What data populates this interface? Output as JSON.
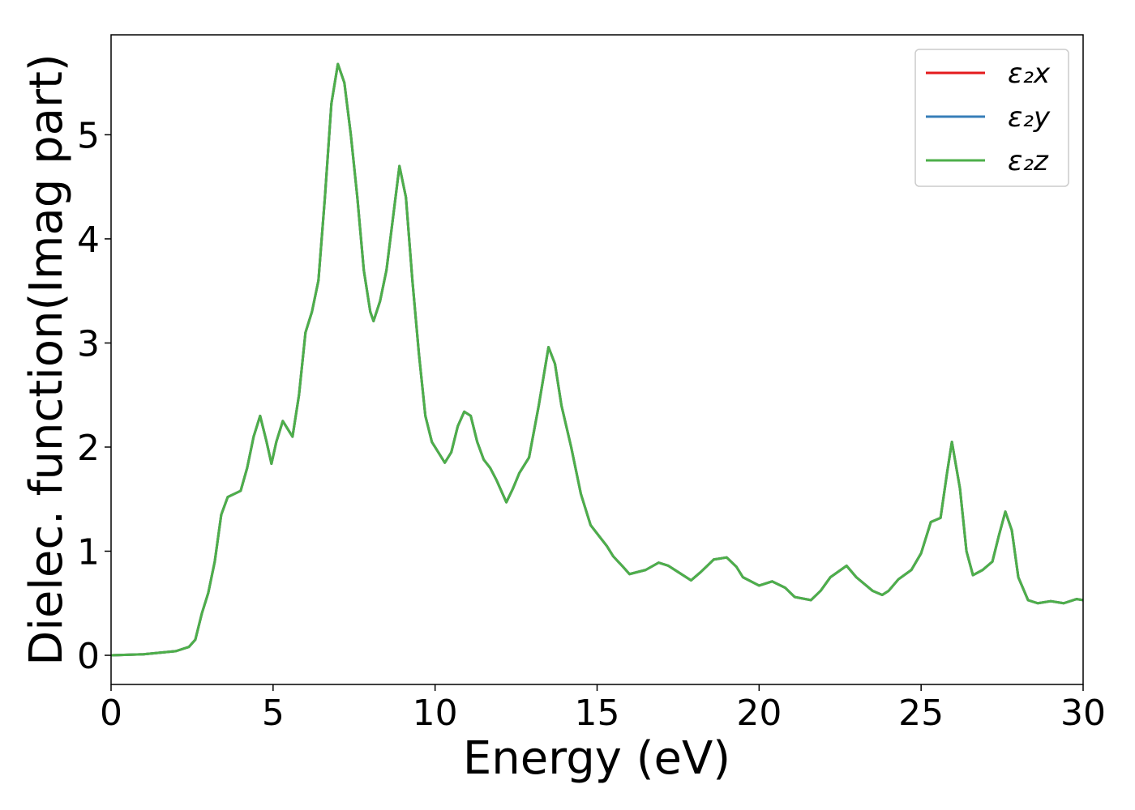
{
  "chart_data": {
    "type": "line",
    "xlabel": "Energy (eV)",
    "ylabel": "Dielec. function(Imag part)",
    "x": [
      0,
      1,
      2,
      2.4,
      2.6,
      2.8,
      3.0,
      3.2,
      3.4,
      3.6,
      3.8,
      4.0,
      4.2,
      4.4,
      4.6,
      4.8,
      4.95,
      5.1,
      5.3,
      5.5,
      5.6,
      5.8,
      6.0,
      6.2,
      6.4,
      6.6,
      6.8,
      7.0,
      7.2,
      7.4,
      7.6,
      7.8,
      8.0,
      8.1,
      8.3,
      8.5,
      8.7,
      8.9,
      9.1,
      9.3,
      9.5,
      9.7,
      9.9,
      10.1,
      10.3,
      10.5,
      10.7,
      10.9,
      11.1,
      11.3,
      11.5,
      11.7,
      11.9,
      12.2,
      12.4,
      12.6,
      12.9,
      13.2,
      13.5,
      13.7,
      13.9,
      14.2,
      14.5,
      14.8,
      15.1,
      15.3,
      15.5,
      15.8,
      16.0,
      16.5,
      16.9,
      17.2,
      17.5,
      17.9,
      18.2,
      18.6,
      19.0,
      19.3,
      19.5,
      20.0,
      20.4,
      20.8,
      21.1,
      21.6,
      21.9,
      22.2,
      22.7,
      23.0,
      23.5,
      23.8,
      24.0,
      24.3,
      24.7,
      25.0,
      25.3,
      25.6,
      25.8,
      25.95,
      26.2,
      26.4,
      26.6,
      26.9,
      27.2,
      27.4,
      27.6,
      27.8,
      28.0,
      28.3,
      28.6,
      29.0,
      29.4,
      29.8,
      30.0
    ],
    "series": [
      {
        "name": "ε₂x",
        "color": "#e41a1c",
        "values": [
          0,
          0.01,
          0.04,
          0.08,
          0.15,
          0.4,
          0.6,
          0.9,
          1.35,
          1.52,
          1.55,
          1.58,
          1.8,
          2.1,
          2.3,
          2.05,
          1.84,
          2.05,
          2.25,
          2.15,
          2.1,
          2.5,
          3.1,
          3.3,
          3.6,
          4.4,
          5.3,
          5.68,
          5.5,
          5.0,
          4.4,
          3.7,
          3.3,
          3.21,
          3.4,
          3.7,
          4.2,
          4.7,
          4.4,
          3.6,
          2.9,
          2.3,
          2.05,
          1.95,
          1.85,
          1.95,
          2.2,
          2.34,
          2.3,
          2.05,
          1.88,
          1.8,
          1.68,
          1.47,
          1.6,
          1.75,
          1.9,
          2.4,
          2.96,
          2.8,
          2.4,
          2.0,
          1.55,
          1.25,
          1.13,
          1.05,
          0.95,
          0.85,
          0.78,
          0.82,
          0.89,
          0.86,
          0.8,
          0.72,
          0.8,
          0.92,
          0.94,
          0.85,
          0.75,
          0.67,
          0.71,
          0.65,
          0.56,
          0.53,
          0.62,
          0.75,
          0.86,
          0.75,
          0.62,
          0.58,
          0.62,
          0.73,
          0.82,
          0.98,
          1.28,
          1.32,
          1.75,
          2.05,
          1.6,
          1.0,
          0.77,
          0.82,
          0.9,
          1.15,
          1.38,
          1.2,
          0.75,
          0.53,
          0.5,
          0.52,
          0.5,
          0.54,
          0.53
        ]
      },
      {
        "name": "ε₂y",
        "color": "#377eb8",
        "values": [
          0,
          0.01,
          0.04,
          0.08,
          0.15,
          0.4,
          0.6,
          0.9,
          1.35,
          1.52,
          1.55,
          1.58,
          1.8,
          2.1,
          2.3,
          2.05,
          1.84,
          2.05,
          2.25,
          2.15,
          2.1,
          2.5,
          3.1,
          3.3,
          3.6,
          4.4,
          5.3,
          5.68,
          5.5,
          5.0,
          4.4,
          3.7,
          3.3,
          3.21,
          3.4,
          3.7,
          4.2,
          4.7,
          4.4,
          3.6,
          2.9,
          2.3,
          2.05,
          1.95,
          1.85,
          1.95,
          2.2,
          2.34,
          2.3,
          2.05,
          1.88,
          1.8,
          1.68,
          1.47,
          1.6,
          1.75,
          1.9,
          2.4,
          2.96,
          2.8,
          2.4,
          2.0,
          1.55,
          1.25,
          1.13,
          1.05,
          0.95,
          0.85,
          0.78,
          0.82,
          0.89,
          0.86,
          0.8,
          0.72,
          0.8,
          0.92,
          0.94,
          0.85,
          0.75,
          0.67,
          0.71,
          0.65,
          0.56,
          0.53,
          0.62,
          0.75,
          0.86,
          0.75,
          0.62,
          0.58,
          0.62,
          0.73,
          0.82,
          0.98,
          1.28,
          1.32,
          1.75,
          2.05,
          1.6,
          1.0,
          0.77,
          0.82,
          0.9,
          1.15,
          1.38,
          1.2,
          0.75,
          0.53,
          0.5,
          0.52,
          0.5,
          0.54,
          0.53
        ]
      },
      {
        "name": "ε₂z",
        "color": "#4daf4a",
        "values": [
          0,
          0.01,
          0.04,
          0.08,
          0.15,
          0.4,
          0.6,
          0.9,
          1.35,
          1.52,
          1.55,
          1.58,
          1.8,
          2.1,
          2.3,
          2.05,
          1.84,
          2.05,
          2.25,
          2.15,
          2.1,
          2.5,
          3.1,
          3.3,
          3.6,
          4.4,
          5.3,
          5.68,
          5.5,
          5.0,
          4.4,
          3.7,
          3.3,
          3.21,
          3.4,
          3.7,
          4.2,
          4.7,
          4.4,
          3.6,
          2.9,
          2.3,
          2.05,
          1.95,
          1.85,
          1.95,
          2.2,
          2.34,
          2.3,
          2.05,
          1.88,
          1.8,
          1.68,
          1.47,
          1.6,
          1.75,
          1.9,
          2.4,
          2.96,
          2.8,
          2.4,
          2.0,
          1.55,
          1.25,
          1.13,
          1.05,
          0.95,
          0.85,
          0.78,
          0.82,
          0.89,
          0.86,
          0.8,
          0.72,
          0.8,
          0.92,
          0.94,
          0.85,
          0.75,
          0.67,
          0.71,
          0.65,
          0.56,
          0.53,
          0.62,
          0.75,
          0.86,
          0.75,
          0.62,
          0.58,
          0.62,
          0.73,
          0.82,
          0.98,
          1.28,
          1.32,
          1.75,
          2.05,
          1.6,
          1.0,
          0.77,
          0.82,
          0.9,
          1.15,
          1.38,
          1.2,
          0.75,
          0.53,
          0.5,
          0.52,
          0.5,
          0.54,
          0.53
        ]
      }
    ],
    "xlim": [
      0,
      30
    ],
    "xticks": [
      0,
      5,
      10,
      15,
      20,
      25,
      30
    ],
    "ylim": [
      -0.28,
      5.96
    ],
    "yticks": [
      0,
      1,
      2,
      3,
      4,
      5
    ],
    "grid": false,
    "legend": "upper right"
  }
}
